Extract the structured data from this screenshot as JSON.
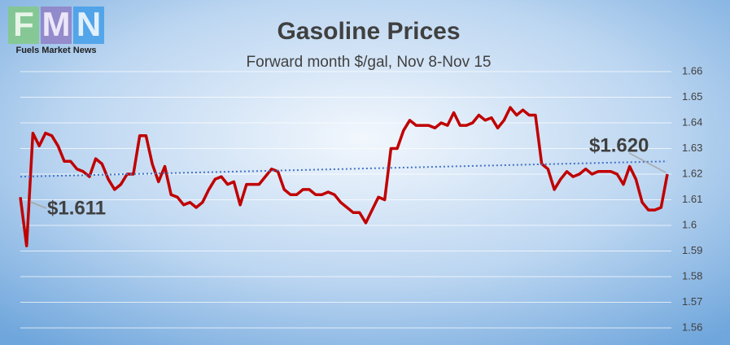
{
  "logo": {
    "letters": [
      "F",
      "M",
      "N"
    ],
    "tagline": "Fuels Market News"
  },
  "chart_data": {
    "type": "line",
    "title": "Gasoline Prices",
    "subtitle": "Forward month $/gal, Nov 8-Nov 15",
    "series": [
      {
        "color": "#c00000",
        "values": [
          1.611,
          1.592,
          1.636,
          1.631,
          1.636,
          1.635,
          1.631,
          1.625,
          1.625,
          1.622,
          1.621,
          1.619,
          1.626,
          1.624,
          1.618,
          1.614,
          1.616,
          1.62,
          1.62,
          1.635,
          1.635,
          1.624,
          1.617,
          1.623,
          1.612,
          1.611,
          1.608,
          1.609,
          1.607,
          1.609,
          1.614,
          1.618,
          1.619,
          1.616,
          1.617,
          1.608,
          1.616,
          1.616,
          1.616,
          1.619,
          1.622,
          1.621,
          1.614,
          1.612,
          1.612,
          1.614,
          1.614,
          1.612,
          1.612,
          1.613,
          1.612,
          1.609,
          1.607,
          1.605,
          1.605,
          1.601,
          1.606,
          1.611,
          1.61,
          1.63,
          1.63,
          1.637,
          1.641,
          1.639,
          1.639,
          1.639,
          1.638,
          1.64,
          1.639,
          1.644,
          1.639,
          1.639,
          1.64,
          1.643,
          1.641,
          1.642,
          1.638,
          1.641,
          1.646,
          1.643,
          1.645,
          1.643,
          1.643,
          1.624,
          1.622,
          1.614,
          1.618,
          1.621,
          1.619,
          1.62,
          1.622,
          1.62,
          1.621,
          1.621,
          1.621,
          1.62,
          1.616,
          1.623,
          1.618,
          1.609,
          1.606,
          1.606,
          1.607,
          1.62
        ]
      }
    ],
    "trend": {
      "values": [
        1.619,
        1.625
      ],
      "color": "#4472c4"
    },
    "annotations": [
      {
        "text": "$1.611"
      },
      {
        "text": "$1.620"
      }
    ],
    "ylim": [
      1.56,
      1.66
    ],
    "yticks": [
      1.56,
      1.57,
      1.58,
      1.59,
      {
        "value": 1.6,
        "label": "1.6"
      },
      1.61,
      1.62,
      1.63,
      1.64,
      1.65,
      1.66
    ],
    "grid": true
  }
}
